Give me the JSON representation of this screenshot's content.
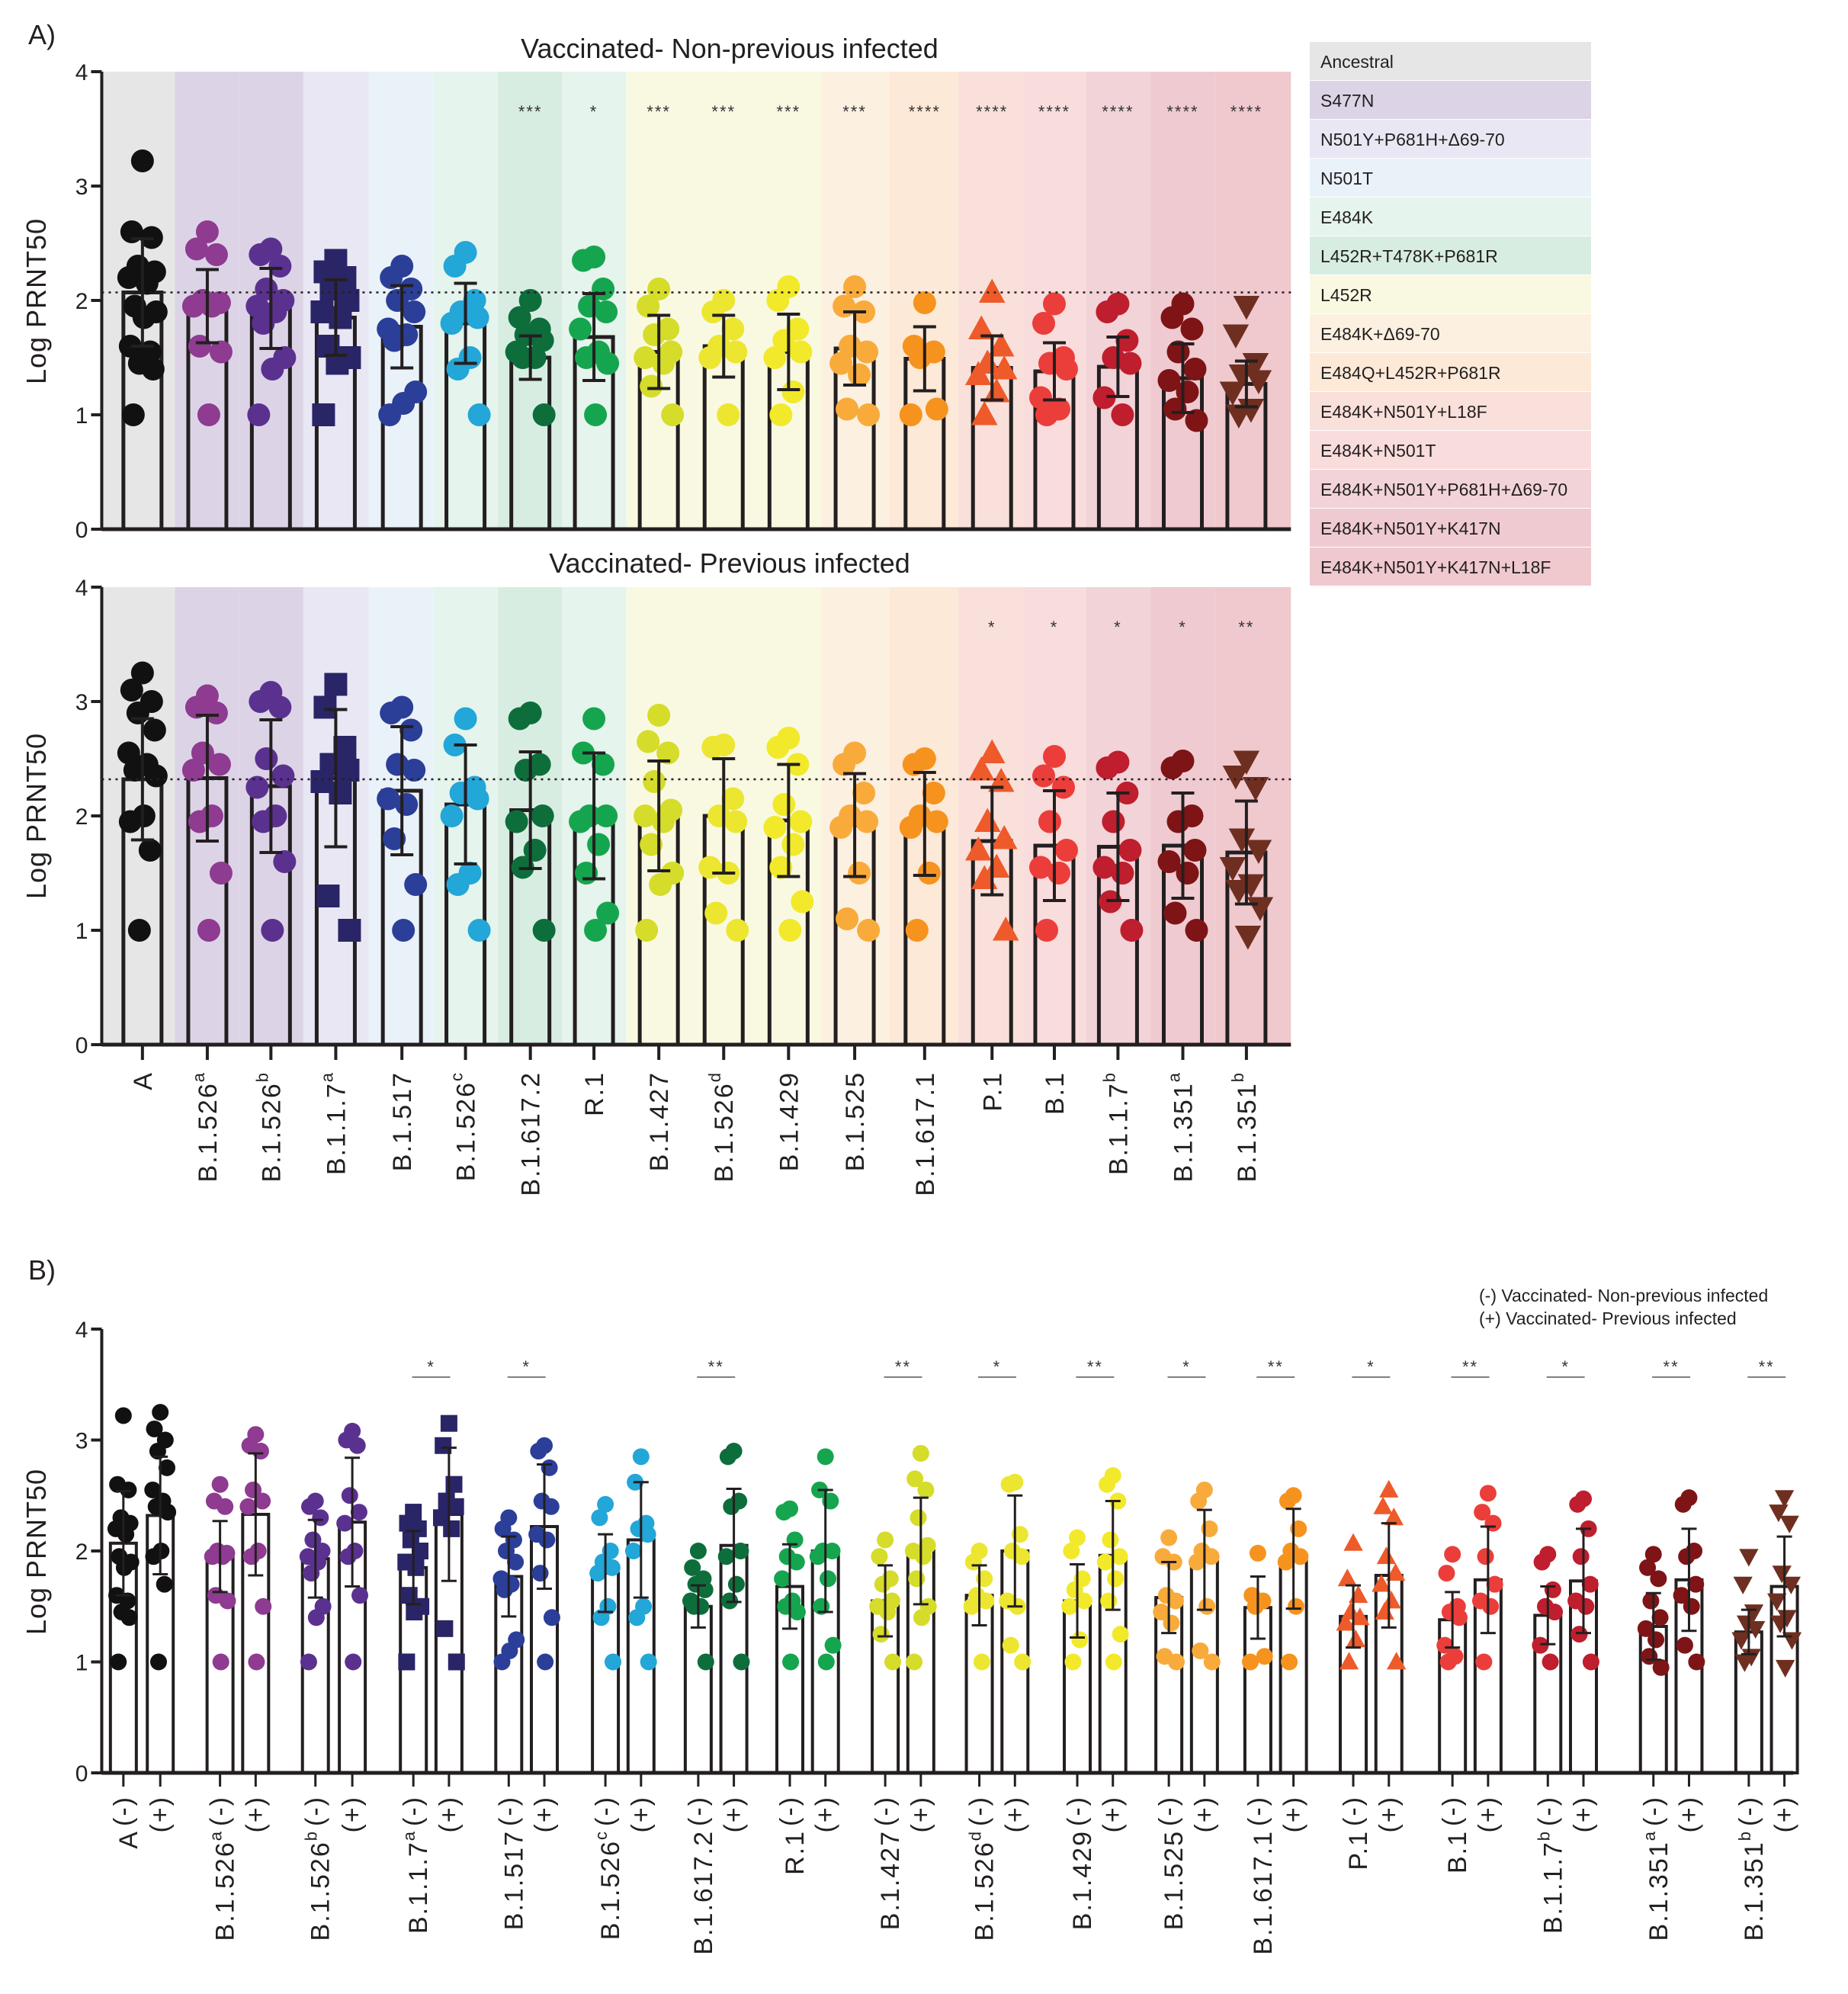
{
  "panels": {
    "a_label": "A)",
    "b_label": "B)"
  },
  "legend": {
    "items": [
      {
        "label": "Ancestral",
        "color": "#e6e6e6"
      },
      {
        "label": "S477N",
        "color": "#dcd4e6"
      },
      {
        "label": "N501Y+P681H+Δ69-70",
        "color": "#e8e7f3"
      },
      {
        "label": "N501T",
        "color": "#eaf2f9"
      },
      {
        "label": "E484K",
        "color": "#e5f4ec"
      },
      {
        "label": "L452R+T478K+P681R",
        "color": "#d8ede1"
      },
      {
        "label": "L452R",
        "color": "#f9f9e2"
      },
      {
        "label": "E484K+Δ69-70",
        "color": "#fcf0e1"
      },
      {
        "label": "E484Q+L452R+P681R",
        "color": "#fde9d7"
      },
      {
        "label": "E484K+N501Y+L18F",
        "color": "#f9e0da"
      },
      {
        "label": "E484K+N501T",
        "color": "#f9dcdc"
      },
      {
        "label": "E484K+N501Y+P681H+Δ69-70",
        "color": "#f2d3d8"
      },
      {
        "label": "E484K+N501Y+K417N",
        "color": "#efcbd1"
      },
      {
        "label": "E484K+N501Y+K417N+L18F",
        "color": "#efc9ce"
      }
    ]
  },
  "legend_b": {
    "neg": "(-) Vaccinated- Non-previous infected",
    "pos": "(+) Vaccinated- Previous infected"
  },
  "chart_data": [
    {
      "type": "bar+scatter",
      "title": "Vaccinated- Non-previous infected",
      "ylabel": "Log PRNT50",
      "ylim": [
        0,
        4
      ],
      "yticks": [
        "0",
        "1",
        "2",
        "3",
        "4"
      ],
      "reference_line": 2.07,
      "series_key": "neg"
    },
    {
      "type": "bar+scatter",
      "title": "Vaccinated- Previous infected",
      "ylabel": "Log PRNT50",
      "ylim": [
        0,
        4
      ],
      "yticks": [
        "0",
        "1",
        "2",
        "3",
        "4"
      ],
      "reference_line": 2.32,
      "series_key": "pos"
    },
    {
      "type": "paired bar+scatter",
      "ylabel": "Log PRNT50",
      "ylim": [
        0,
        4
      ],
      "yticks": [
        "0",
        "1",
        "2",
        "3",
        "4"
      ],
      "group_labels": {
        "neg": "(-)",
        "pos": "(+)"
      }
    }
  ],
  "categories": [
    {
      "name": "A",
      "sup": "",
      "mutation": 0,
      "color": "#111111",
      "shape": "circle",
      "neg": {
        "mean": 2.07,
        "sd": 0.47,
        "sig": "",
        "points": [
          3.22,
          2.6,
          2.55,
          2.3,
          2.25,
          2.2,
          2.15,
          1.95,
          1.9,
          1.85,
          1.6,
          1.55,
          1.45,
          1.4,
          1.0
        ]
      },
      "pos": {
        "mean": 2.32,
        "sd": 0.53,
        "sig": "",
        "points": [
          3.25,
          3.1,
          3.0,
          2.9,
          2.75,
          2.55,
          2.45,
          2.4,
          2.35,
          2.0,
          1.95,
          1.7,
          1.0
        ]
      },
      "b_sig": ""
    },
    {
      "name": "B.1.526",
      "sup": "a",
      "mutation": 1,
      "color": "#8e3b91",
      "shape": "circle",
      "neg": {
        "mean": 1.95,
        "sd": 0.32,
        "sig": "",
        "points": [
          2.6,
          2.45,
          2.4,
          2.0,
          1.98,
          1.95,
          1.95,
          1.6,
          1.55,
          1.0
        ]
      },
      "pos": {
        "mean": 2.33,
        "sd": 0.55,
        "sig": "",
        "points": [
          3.05,
          2.95,
          2.9,
          2.55,
          2.45,
          2.4,
          2.0,
          1.95,
          1.5,
          1.0
        ]
      },
      "b_sig": ""
    },
    {
      "name": "B.1.526",
      "sup": "b",
      "mutation": 1,
      "color": "#5b3190",
      "shape": "circle",
      "neg": {
        "mean": 1.93,
        "sd": 0.35,
        "sig": "",
        "points": [
          2.45,
          2.4,
          2.3,
          2.1,
          2.0,
          1.95,
          1.9,
          1.8,
          1.5,
          1.4,
          1.0
        ]
      },
      "pos": {
        "mean": 2.26,
        "sd": 0.58,
        "sig": "",
        "points": [
          3.08,
          3.0,
          2.95,
          2.5,
          2.35,
          2.25,
          2.0,
          1.95,
          1.6,
          1.0
        ]
      },
      "b_sig": ""
    },
    {
      "name": "B.1.1.7",
      "sup": "a",
      "mutation": 2,
      "color": "#2a2567",
      "shape": "square",
      "neg": {
        "mean": 1.85,
        "sd": 0.33,
        "sig": "",
        "points": [
          2.35,
          2.25,
          2.2,
          2.1,
          2.0,
          1.9,
          1.85,
          1.6,
          1.5,
          1.45,
          1.0
        ]
      },
      "pos": {
        "mean": 2.33,
        "sd": 0.6,
        "sig": "",
        "points": [
          3.15,
          2.95,
          2.6,
          2.45,
          2.4,
          2.3,
          2.2,
          1.3,
          1.0
        ]
      },
      "b_sig": "*"
    },
    {
      "name": "B.1.517",
      "sup": "",
      "mutation": 3,
      "color": "#2b3f98",
      "shape": "circle",
      "neg": {
        "mean": 1.77,
        "sd": 0.36,
        "sig": "",
        "points": [
          2.3,
          2.2,
          2.1,
          2.0,
          1.9,
          1.75,
          1.7,
          1.65,
          1.2,
          1.1,
          1.0
        ]
      },
      "pos": {
        "mean": 2.22,
        "sd": 0.56,
        "sig": "",
        "points": [
          2.95,
          2.9,
          2.75,
          2.45,
          2.4,
          2.15,
          2.1,
          1.8,
          1.4,
          1.0
        ]
      },
      "b_sig": "*"
    },
    {
      "name": "B.1.526",
      "sup": "c",
      "mutation": 4,
      "color": "#23a6d8",
      "shape": "circle",
      "neg": {
        "mean": 1.8,
        "sd": 0.35,
        "sig": "",
        "points": [
          2.42,
          2.3,
          2.0,
          1.9,
          1.85,
          1.8,
          1.5,
          1.4,
          1.0
        ]
      },
      "pos": {
        "mean": 2.1,
        "sd": 0.52,
        "sig": "",
        "points": [
          2.85,
          2.62,
          2.25,
          2.2,
          2.15,
          2.0,
          1.5,
          1.4,
          1.0
        ]
      },
      "b_sig": ""
    },
    {
      "name": "B.1.617.2",
      "sup": "",
      "mutation": 5,
      "color": "#0d6e3c",
      "shape": "circle",
      "neg": {
        "mean": 1.5,
        "sd": 0.19,
        "sig": "***",
        "points": [
          2.0,
          1.85,
          1.75,
          1.7,
          1.65,
          1.55,
          1.5,
          1.5,
          1.0
        ]
      },
      "pos": {
        "mean": 2.05,
        "sd": 0.51,
        "sig": "",
        "points": [
          2.9,
          2.85,
          2.45,
          2.4,
          2.0,
          1.95,
          1.7,
          1.55,
          1.0
        ]
      },
      "b_sig": "**"
    },
    {
      "name": "R.1",
      "sup": "",
      "mutation": 4,
      "color": "#16a54f",
      "shape": "circle",
      "neg": {
        "mean": 1.68,
        "sd": 0.38,
        "sig": "*",
        "points": [
          2.38,
          2.35,
          2.1,
          1.95,
          1.9,
          1.75,
          1.55,
          1.5,
          1.45,
          1.0
        ]
      },
      "pos": {
        "mean": 2.0,
        "sd": 0.55,
        "sig": "",
        "points": [
          2.85,
          2.55,
          2.45,
          2.0,
          2.0,
          1.95,
          1.75,
          1.5,
          1.15,
          1.0
        ]
      },
      "b_sig": ""
    },
    {
      "name": "B.1.427",
      "sup": "",
      "mutation": 6,
      "color": "#d5dc2a",
      "shape": "circle",
      "neg": {
        "mean": 1.55,
        "sd": 0.32,
        "sig": "***",
        "points": [
          2.1,
          1.95,
          1.75,
          1.7,
          1.55,
          1.5,
          1.45,
          1.25,
          1.0
        ]
      },
      "pos": {
        "mean": 2.0,
        "sd": 0.48,
        "sig": "",
        "points": [
          2.88,
          2.65,
          2.55,
          2.3,
          2.05,
          2.0,
          1.95,
          1.75,
          1.5,
          1.4,
          1.0
        ]
      },
      "b_sig": "**"
    },
    {
      "name": "B.1.526",
      "sup": "d",
      "mutation": 6,
      "color": "#ece630",
      "shape": "circle",
      "neg": {
        "mean": 1.6,
        "sd": 0.27,
        "sig": "***",
        "points": [
          2.0,
          1.9,
          1.75,
          1.6,
          1.55,
          1.5,
          1.0
        ]
      },
      "pos": {
        "mean": 2.0,
        "sd": 0.5,
        "sig": "",
        "points": [
          2.62,
          2.6,
          2.15,
          2.0,
          1.95,
          1.55,
          1.5,
          1.15,
          1.0
        ]
      },
      "b_sig": "*"
    },
    {
      "name": "B.1.429",
      "sup": "",
      "mutation": 6,
      "color": "#f2e92a",
      "shape": "circle",
      "neg": {
        "mean": 1.55,
        "sd": 0.33,
        "sig": "***",
        "points": [
          2.12,
          2.0,
          1.75,
          1.65,
          1.55,
          1.5,
          1.2,
          1.0
        ]
      },
      "pos": {
        "mean": 1.96,
        "sd": 0.49,
        "sig": "",
        "points": [
          2.68,
          2.6,
          2.45,
          2.1,
          1.95,
          1.9,
          1.75,
          1.55,
          1.25,
          1.0
        ]
      },
      "b_sig": "**"
    },
    {
      "name": "B.1.525",
      "sup": "",
      "mutation": 7,
      "color": "#f8ab3b",
      "shape": "circle",
      "neg": {
        "mean": 1.58,
        "sd": 0.32,
        "sig": "***",
        "points": [
          2.12,
          1.95,
          1.9,
          1.6,
          1.55,
          1.45,
          1.35,
          1.05,
          1.0
        ]
      },
      "pos": {
        "mean": 1.92,
        "sd": 0.45,
        "sig": "",
        "points": [
          2.55,
          2.45,
          2.2,
          2.0,
          1.95,
          1.9,
          1.5,
          1.1,
          1.0
        ]
      },
      "b_sig": "*"
    },
    {
      "name": "B.1.617.1",
      "sup": "",
      "mutation": 8,
      "color": "#f6931e",
      "shape": "circle",
      "neg": {
        "mean": 1.49,
        "sd": 0.28,
        "sig": "****",
        "points": [
          1.98,
          1.6,
          1.55,
          1.5,
          1.05,
          1.0
        ]
      },
      "pos": {
        "mean": 1.93,
        "sd": 0.45,
        "sig": "",
        "points": [
          2.5,
          2.45,
          2.2,
          2.0,
          1.95,
          1.9,
          1.5,
          1.0
        ]
      },
      "b_sig": "**"
    },
    {
      "name": "P.1",
      "sup": "",
      "mutation": 9,
      "color": "#ee5a2a",
      "shape": "triangle",
      "neg": {
        "mean": 1.41,
        "sd": 0.28,
        "sig": "****",
        "points": [
          2.07,
          1.75,
          1.6,
          1.45,
          1.4,
          1.35,
          1.2,
          1.0
        ]
      },
      "pos": {
        "mean": 1.78,
        "sd": 0.47,
        "sig": "*",
        "points": [
          2.55,
          2.4,
          2.3,
          1.95,
          1.8,
          1.7,
          1.55,
          1.45,
          1.0
        ]
      },
      "b_sig": "*"
    },
    {
      "name": "B.1",
      "sup": "",
      "mutation": 10,
      "color": "#eb3e3a",
      "shape": "circle",
      "neg": {
        "mean": 1.38,
        "sd": 0.25,
        "sig": "****",
        "points": [
          1.97,
          1.8,
          1.5,
          1.45,
          1.4,
          1.15,
          1.05,
          1.0
        ]
      },
      "pos": {
        "mean": 1.74,
        "sd": 0.48,
        "sig": "*",
        "points": [
          2.52,
          2.35,
          2.25,
          1.95,
          1.7,
          1.55,
          1.5,
          1.0
        ]
      },
      "b_sig": "**"
    },
    {
      "name": "B.1.1.7",
      "sup": "b",
      "mutation": 11,
      "color": "#be1e2d",
      "shape": "circle",
      "neg": {
        "mean": 1.42,
        "sd": 0.26,
        "sig": "****",
        "points": [
          1.97,
          1.9,
          1.65,
          1.5,
          1.45,
          1.15,
          1.0
        ]
      },
      "pos": {
        "mean": 1.73,
        "sd": 0.47,
        "sig": "*",
        "points": [
          2.47,
          2.42,
          2.2,
          1.95,
          1.7,
          1.55,
          1.5,
          1.25,
          1.0
        ]
      },
      "b_sig": "*"
    },
    {
      "name": "B.1.351",
      "sup": "a",
      "mutation": 12,
      "color": "#7e1416",
      "shape": "circle",
      "neg": {
        "mean": 1.32,
        "sd": 0.3,
        "sig": "****",
        "points": [
          1.97,
          1.85,
          1.75,
          1.55,
          1.4,
          1.3,
          1.2,
          1.05,
          0.95
        ]
      },
      "pos": {
        "mean": 1.74,
        "sd": 0.46,
        "sig": "*",
        "points": [
          2.48,
          2.42,
          2.0,
          1.95,
          1.7,
          1.6,
          1.5,
          1.15,
          1.0
        ]
      },
      "b_sig": "**"
    },
    {
      "name": "B.1.351",
      "sup": "b",
      "mutation": 13,
      "color": "#6e2f21",
      "shape": "triangle-down",
      "neg": {
        "mean": 1.27,
        "sd": 0.2,
        "sig": "****",
        "points": [
          1.95,
          1.7,
          1.45,
          1.35,
          1.3,
          1.2,
          1.05,
          1.0
        ]
      },
      "pos": {
        "mean": 1.68,
        "sd": 0.45,
        "sig": "**",
        "points": [
          2.48,
          2.35,
          2.25,
          1.8,
          1.7,
          1.55,
          1.4,
          1.35,
          1.2,
          0.95
        ]
      },
      "b_sig": "**"
    }
  ]
}
